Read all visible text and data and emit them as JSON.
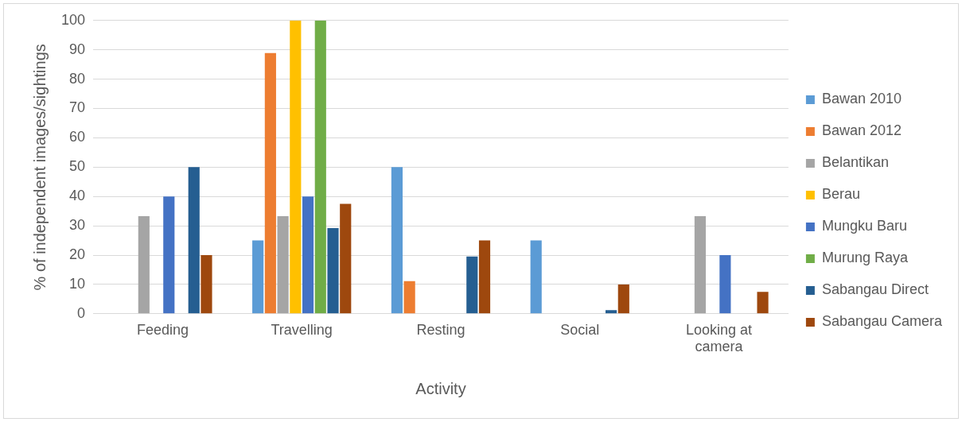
{
  "chart_data": {
    "type": "bar",
    "xlabel": "Activity",
    "ylabel": "% of independent images/sightings",
    "categories": [
      "Feeding",
      "Travelling",
      "Resting",
      "Social",
      "Looking at camera"
    ],
    "series": [
      {
        "name": "Bawan 2010",
        "color": "#5b9bd5",
        "values": [
          0,
          25,
          50,
          25,
          0
        ]
      },
      {
        "name": "Bawan 2012",
        "color": "#ed7d31",
        "values": [
          0,
          88.9,
          11.1,
          0,
          0
        ]
      },
      {
        "name": "Belantikan",
        "color": "#a5a5a5",
        "values": [
          33.3,
          33.3,
          0,
          0,
          33.3
        ]
      },
      {
        "name": "Berau",
        "color": "#ffc000",
        "values": [
          0,
          100,
          0,
          0,
          0
        ]
      },
      {
        "name": "Mungku Baru",
        "color": "#4472c4",
        "values": [
          40,
          40,
          0,
          0,
          20
        ]
      },
      {
        "name": "Murung Raya",
        "color": "#70ad47",
        "values": [
          0,
          100,
          0,
          0,
          0
        ]
      },
      {
        "name": "Sabangau Direct",
        "color": "#255e91",
        "values": [
          50,
          29.2,
          19.5,
          1.2,
          0
        ]
      },
      {
        "name": "Sabangau Camera",
        "color": "#9e480e",
        "values": [
          20,
          37.5,
          25,
          10,
          7.5
        ]
      }
    ],
    "ylim": [
      0,
      100
    ],
    "yticks": [
      0,
      10,
      20,
      30,
      40,
      50,
      60,
      70,
      80,
      90,
      100
    ],
    "grid": "y",
    "legend": "right"
  }
}
